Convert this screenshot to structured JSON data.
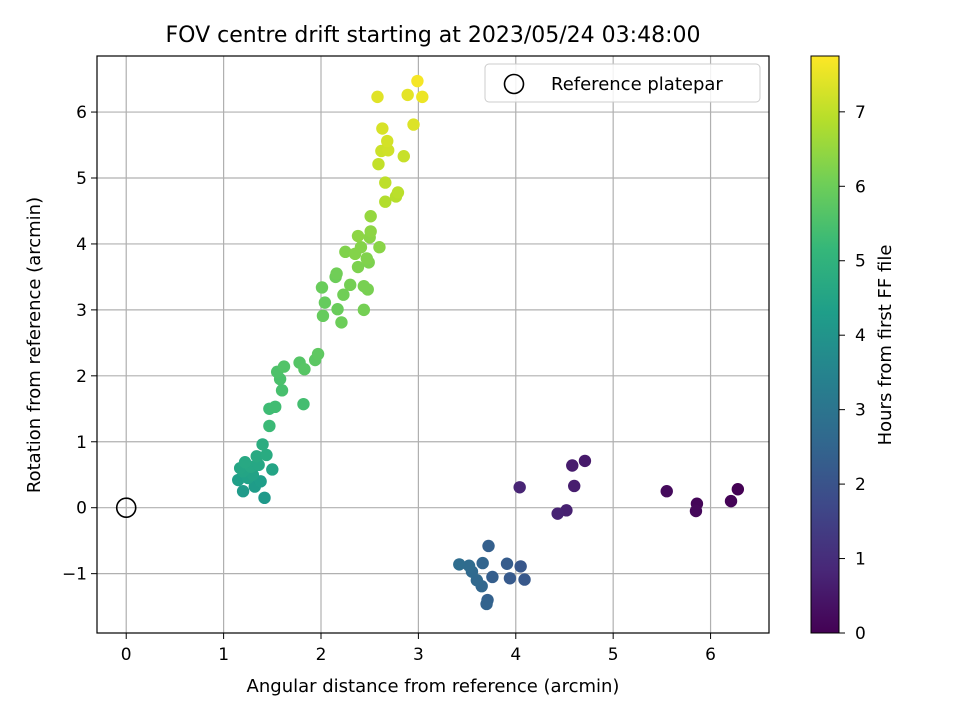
{
  "chart_data": {
    "type": "scatter",
    "title": "FOV centre drift starting at 2023/05/24 03:48:00",
    "xlabel": "Angular distance from reference (arcmin)",
    "ylabel": "Rotation from reference (arcmin)",
    "xlim": [
      -0.3,
      6.6
    ],
    "ylim": [
      -1.9,
      6.85
    ],
    "xticks": [
      "0",
      "1",
      "2",
      "3",
      "4",
      "5",
      "6"
    ],
    "yticks": [
      "−1",
      "0",
      "1",
      "2",
      "3",
      "4",
      "5",
      "6"
    ],
    "grid": true,
    "legend": {
      "placement": "top-right",
      "entries": [
        "Reference platepar"
      ]
    },
    "reference_point": {
      "x": 0,
      "y": 0
    },
    "colorbar": {
      "label": "Hours from first FF file",
      "range": [
        0,
        7.75
      ],
      "ticks": [
        "0",
        "1",
        "2",
        "3",
        "4",
        "5",
        "6",
        "7"
      ],
      "colormap": "viridis"
    },
    "colormap_stops": [
      "#440154",
      "#482878",
      "#3e4989",
      "#31688e",
      "#26828e",
      "#1f9e89",
      "#35b779",
      "#6ece58",
      "#b5de2b",
      "#fde725"
    ],
    "points": [
      {
        "x": 6.28,
        "y": 0.28,
        "t": 0.0
      },
      {
        "x": 6.21,
        "y": 0.1,
        "t": 0.05
      },
      {
        "x": 5.86,
        "y": 0.06,
        "t": 0.1
      },
      {
        "x": 5.85,
        "y": -0.05,
        "t": 0.15
      },
      {
        "x": 5.55,
        "y": 0.25,
        "t": 0.2
      },
      {
        "x": 4.71,
        "y": 0.71,
        "t": 0.55
      },
      {
        "x": 4.58,
        "y": 0.64,
        "t": 0.6
      },
      {
        "x": 4.6,
        "y": 0.33,
        "t": 0.65
      },
      {
        "x": 4.52,
        "y": -0.04,
        "t": 0.7
      },
      {
        "x": 4.43,
        "y": -0.09,
        "t": 0.75
      },
      {
        "x": 4.04,
        "y": 0.31,
        "t": 0.8
      },
      {
        "x": 4.05,
        "y": -0.89,
        "t": 2.1
      },
      {
        "x": 4.09,
        "y": -1.09,
        "t": 2.15
      },
      {
        "x": 3.94,
        "y": -1.07,
        "t": 2.2
      },
      {
        "x": 3.91,
        "y": -0.85,
        "t": 2.25
      },
      {
        "x": 3.76,
        "y": -1.05,
        "t": 2.3
      },
      {
        "x": 3.72,
        "y": -0.58,
        "t": 2.35
      },
      {
        "x": 3.71,
        "y": -1.4,
        "t": 2.4
      },
      {
        "x": 3.7,
        "y": -1.46,
        "t": 2.45
      },
      {
        "x": 3.66,
        "y": -0.84,
        "t": 2.5
      },
      {
        "x": 3.65,
        "y": -1.19,
        "t": 2.55
      },
      {
        "x": 3.6,
        "y": -1.1,
        "t": 2.6
      },
      {
        "x": 3.55,
        "y": -0.97,
        "t": 2.65
      },
      {
        "x": 3.52,
        "y": -0.88,
        "t": 2.7
      },
      {
        "x": 3.42,
        "y": -0.86,
        "t": 2.75
      },
      {
        "x": 1.42,
        "y": 0.15,
        "t": 4.15
      },
      {
        "x": 1.2,
        "y": 0.25,
        "t": 4.2
      },
      {
        "x": 1.32,
        "y": 0.32,
        "t": 4.25
      },
      {
        "x": 1.38,
        "y": 0.4,
        "t": 4.3
      },
      {
        "x": 1.15,
        "y": 0.42,
        "t": 4.35
      },
      {
        "x": 1.25,
        "y": 0.45,
        "t": 4.4
      },
      {
        "x": 1.3,
        "y": 0.5,
        "t": 4.45
      },
      {
        "x": 1.2,
        "y": 0.55,
        "t": 4.5
      },
      {
        "x": 1.5,
        "y": 0.58,
        "t": 4.5
      },
      {
        "x": 1.17,
        "y": 0.6,
        "t": 4.55
      },
      {
        "x": 1.28,
        "y": 0.62,
        "t": 4.6
      },
      {
        "x": 1.36,
        "y": 0.65,
        "t": 4.6
      },
      {
        "x": 1.22,
        "y": 0.69,
        "t": 4.65
      },
      {
        "x": 1.34,
        "y": 0.78,
        "t": 4.7
      },
      {
        "x": 1.44,
        "y": 0.8,
        "t": 4.75
      },
      {
        "x": 1.4,
        "y": 0.96,
        "t": 4.8
      },
      {
        "x": 1.47,
        "y": 1.24,
        "t": 5.25
      },
      {
        "x": 1.47,
        "y": 1.5,
        "t": 5.3
      },
      {
        "x": 1.53,
        "y": 1.53,
        "t": 5.35
      },
      {
        "x": 1.82,
        "y": 1.57,
        "t": 5.4
      },
      {
        "x": 1.6,
        "y": 1.78,
        "t": 5.45
      },
      {
        "x": 1.58,
        "y": 1.95,
        "t": 5.5
      },
      {
        "x": 1.55,
        "y": 2.06,
        "t": 5.55
      },
      {
        "x": 1.62,
        "y": 2.14,
        "t": 5.6
      },
      {
        "x": 1.78,
        "y": 2.2,
        "t": 5.65
      },
      {
        "x": 1.83,
        "y": 2.1,
        "t": 5.7
      },
      {
        "x": 1.94,
        "y": 2.24,
        "t": 5.75
      },
      {
        "x": 1.97,
        "y": 2.33,
        "t": 5.8
      },
      {
        "x": 2.02,
        "y": 2.91,
        "t": 5.9
      },
      {
        "x": 2.04,
        "y": 3.11,
        "t": 5.9
      },
      {
        "x": 2.01,
        "y": 3.34,
        "t": 5.95
      },
      {
        "x": 2.17,
        "y": 3.01,
        "t": 5.95
      },
      {
        "x": 2.21,
        "y": 2.81,
        "t": 6.0
      },
      {
        "x": 2.15,
        "y": 3.5,
        "t": 6.0
      },
      {
        "x": 2.16,
        "y": 3.55,
        "t": 6.05
      },
      {
        "x": 2.23,
        "y": 3.23,
        "t": 6.05
      },
      {
        "x": 2.3,
        "y": 3.38,
        "t": 6.1
      },
      {
        "x": 2.44,
        "y": 3.0,
        "t": 6.1
      },
      {
        "x": 2.44,
        "y": 3.36,
        "t": 6.15
      },
      {
        "x": 2.48,
        "y": 3.31,
        "t": 6.15
      },
      {
        "x": 2.38,
        "y": 3.65,
        "t": 6.2
      },
      {
        "x": 2.49,
        "y": 3.72,
        "t": 6.2
      },
      {
        "x": 2.47,
        "y": 3.78,
        "t": 6.25
      },
      {
        "x": 2.25,
        "y": 3.88,
        "t": 6.25
      },
      {
        "x": 2.35,
        "y": 3.85,
        "t": 6.3
      },
      {
        "x": 2.41,
        "y": 3.95,
        "t": 6.3
      },
      {
        "x": 2.6,
        "y": 3.95,
        "t": 6.35
      },
      {
        "x": 2.5,
        "y": 4.1,
        "t": 6.35
      },
      {
        "x": 2.38,
        "y": 4.12,
        "t": 6.4
      },
      {
        "x": 2.51,
        "y": 4.19,
        "t": 6.4
      },
      {
        "x": 2.51,
        "y": 4.42,
        "t": 6.5
      },
      {
        "x": 2.66,
        "y": 4.64,
        "t": 6.85
      },
      {
        "x": 2.77,
        "y": 4.72,
        "t": 6.9
      },
      {
        "x": 2.79,
        "y": 4.78,
        "t": 6.95
      },
      {
        "x": 2.66,
        "y": 4.93,
        "t": 7.0
      },
      {
        "x": 2.59,
        "y": 5.21,
        "t": 7.05
      },
      {
        "x": 2.85,
        "y": 5.33,
        "t": 7.1
      },
      {
        "x": 2.62,
        "y": 5.41,
        "t": 7.15
      },
      {
        "x": 2.69,
        "y": 5.42,
        "t": 7.2
      },
      {
        "x": 2.68,
        "y": 5.56,
        "t": 7.25
      },
      {
        "x": 2.63,
        "y": 5.75,
        "t": 7.3
      },
      {
        "x": 2.95,
        "y": 5.81,
        "t": 7.35
      },
      {
        "x": 2.58,
        "y": 6.23,
        "t": 7.4
      },
      {
        "x": 2.89,
        "y": 6.26,
        "t": 7.45
      },
      {
        "x": 3.04,
        "y": 6.23,
        "t": 7.55
      },
      {
        "x": 2.99,
        "y": 6.47,
        "t": 7.65
      }
    ]
  }
}
